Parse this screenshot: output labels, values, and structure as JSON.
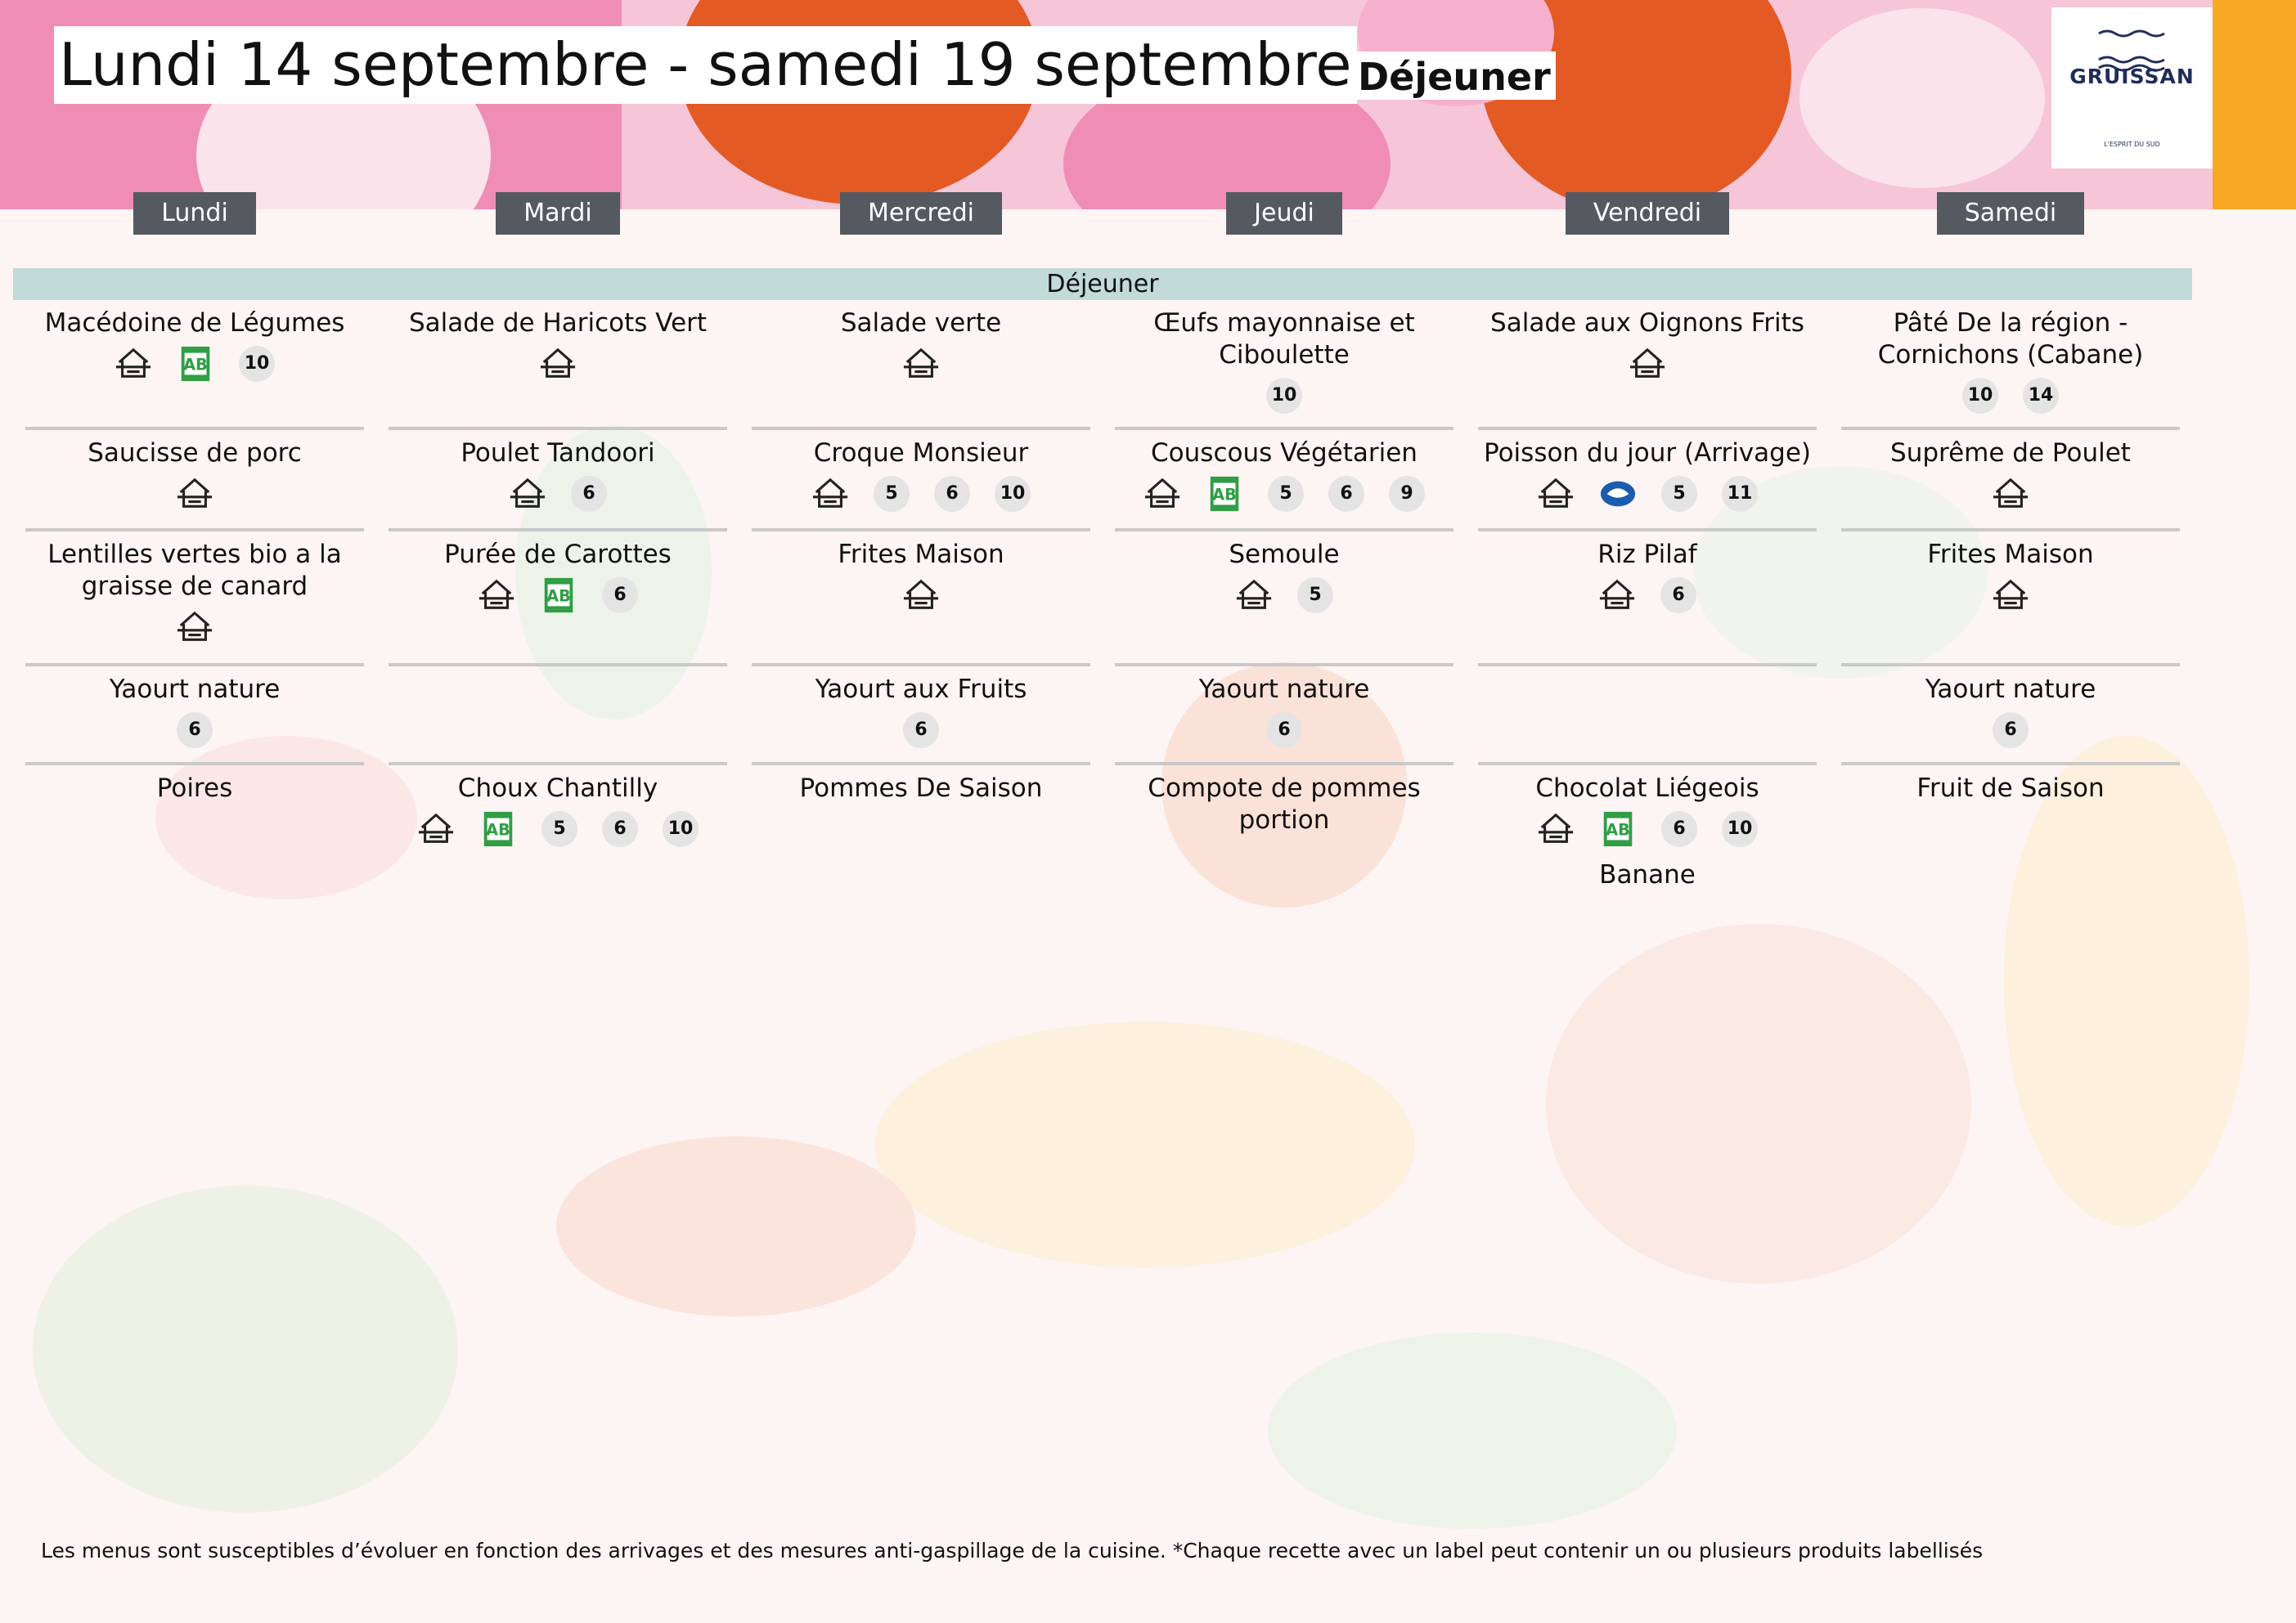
{
  "header": {
    "title": "Lundi 14 septembre - samedi 19 septembre",
    "meal": "Déjeuner",
    "logo": {
      "name": "GRUISSAN",
      "tagline": "L'ESPRIT DU SUD"
    }
  },
  "section": "Déjeuner",
  "days": [
    {
      "name": "Lundi",
      "rows": [
        {
          "dish": "Macédoine de Légumes",
          "allergens": [
            10
          ]
        },
        {
          "dish": "Saucisse de porc",
          "allergens": []
        },
        {
          "dish": "Lentilles vertes bio a la graisse de canard",
          "allergens": []
        },
        {
          "dish": "Yaourt nature",
          "allergens": [
            6
          ]
        },
        {
          "dish": "Poires",
          "allergens": []
        }
      ]
    },
    {
      "name": "Mardi",
      "rows": [
        {
          "dish": "Salade de Haricots Vert",
          "allergens": []
        },
        {
          "dish": "Poulet Tandoori",
          "allergens": [
            6
          ]
        },
        {
          "dish": "Purée de Carottes",
          "allergens": [
            6
          ]
        },
        null,
        {
          "dish": "Choux Chantilly",
          "allergens": [
            5,
            6,
            10
          ]
        }
      ]
    },
    {
      "name": "Mercredi",
      "rows": [
        {
          "dish": "Salade verte",
          "allergens": []
        },
        {
          "dish": "Croque Monsieur",
          "allergens": [
            5,
            6,
            10
          ]
        },
        {
          "dish": "Frites Maison",
          "allergens": []
        },
        {
          "dish": "Yaourt aux Fruits",
          "allergens": [
            6
          ]
        },
        {
          "dish": "Pommes De Saison",
          "allergens": []
        }
      ]
    },
    {
      "name": "Jeudi",
      "rows": [
        {
          "dish": "Œufs mayonnaise et Ciboulette",
          "allergens": [
            10
          ]
        },
        {
          "dish": "Couscous Végétarien",
          "allergens": [
            5,
            6,
            9
          ]
        },
        {
          "dish": "Semoule",
          "allergens": [
            5
          ]
        },
        {
          "dish": "Yaourt nature",
          "allergens": [
            6
          ]
        },
        {
          "dish": "Compote de pommes portion",
          "allergens": []
        }
      ]
    },
    {
      "name": "Vendredi",
      "rows": [
        {
          "dish": "Salade aux Oignons Frits",
          "allergens": []
        },
        {
          "dish": "Poisson du jour (Arrivage)",
          "allergens": [
            5,
            11
          ]
        },
        {
          "dish": "Riz Pilaf",
          "allergens": [
            6
          ]
        },
        null,
        {
          "dish": "Chocolat Liégeois",
          "allergens": [
            6,
            10
          ],
          "extra": "Banane"
        }
      ]
    },
    {
      "name": "Samedi",
      "rows": [
        {
          "dish": "Pâté De la région - Cornichons (Cabane)",
          "allergens": [
            10,
            14
          ]
        },
        {
          "dish": "Suprême de Poulet",
          "allergens": []
        },
        {
          "dish": "Frites Maison",
          "allergens": []
        },
        {
          "dish": "Yaourt nature",
          "allergens": [
            6
          ]
        },
        {
          "dish": "Fruit de Saison",
          "allergens": []
        }
      ]
    }
  ],
  "footer": "Les menus sont susceptibles d’évoluer en fonction des arrivages et des mesures anti-gaspillage de la cuisine. *Chaque recette avec un label peut contenir un ou plusieurs produits labellisés"
}
